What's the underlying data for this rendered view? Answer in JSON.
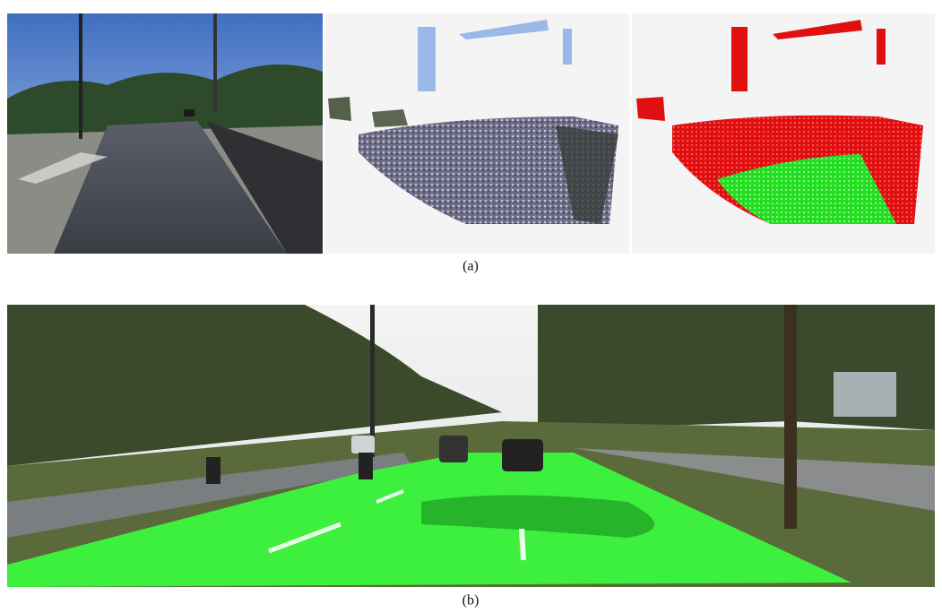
{
  "figure": {
    "panel_a": {
      "caption": "(a)"
    },
    "panel_b": {
      "caption": "(b)"
    }
  }
}
